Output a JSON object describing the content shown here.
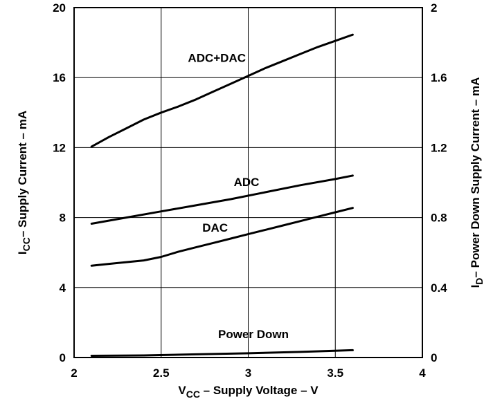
{
  "chart_data": {
    "type": "line",
    "xlabel": {
      "main": "V",
      "sub": "CC",
      "rest": " – Supply Voltage – V"
    },
    "ylabel": {
      "main": "I",
      "sub": "CC",
      "rest": "– Supply Current – mA"
    },
    "y2label": {
      "main": "I",
      "sub": "D",
      "rest": "– Power Down Supply Current – mA"
    },
    "xlim": [
      2,
      4
    ],
    "ylim": [
      0,
      20
    ],
    "y2lim": [
      0,
      2
    ],
    "grid": true,
    "x_ticks": [
      {
        "value": 2,
        "label": "2"
      },
      {
        "value": 2.5,
        "label": "2.5"
      },
      {
        "value": 3,
        "label": "3"
      },
      {
        "value": 3.5,
        "label": "3.5"
      },
      {
        "value": 4,
        "label": "4"
      }
    ],
    "y_ticks": [
      {
        "value": 0,
        "label": "0"
      },
      {
        "value": 4,
        "label": "4"
      },
      {
        "value": 8,
        "label": "8"
      },
      {
        "value": 12,
        "label": "12"
      },
      {
        "value": 16,
        "label": "16"
      },
      {
        "value": 20,
        "label": "20"
      }
    ],
    "y2_ticks": [
      {
        "value": 0,
        "label": "0"
      },
      {
        "value": 0.4,
        "label": "0.4"
      },
      {
        "value": 0.8,
        "label": "0.8"
      },
      {
        "value": 1.2,
        "label": "1.2"
      },
      {
        "value": 1.6,
        "label": "1.6"
      },
      {
        "value": 2,
        "label": "2"
      }
    ],
    "series": [
      {
        "name": "ADC+DAC",
        "axis": "left",
        "x": [
          2.1,
          2.2,
          2.3,
          2.4,
          2.5,
          2.6,
          2.7,
          2.8,
          2.9,
          3.0,
          3.1,
          3.2,
          3.3,
          3.4,
          3.5,
          3.6
        ],
        "y": [
          12.05,
          12.6,
          13.1,
          13.6,
          14.0,
          14.35,
          14.75,
          15.2,
          15.65,
          16.1,
          16.55,
          16.95,
          17.35,
          17.75,
          18.1,
          18.45
        ]
      },
      {
        "name": "ADC",
        "axis": "left",
        "x": [
          2.1,
          2.3,
          2.5,
          2.7,
          2.9,
          3.1,
          3.3,
          3.5,
          3.6
        ],
        "y": [
          7.65,
          8.0,
          8.35,
          8.7,
          9.05,
          9.45,
          9.85,
          10.2,
          10.4
        ]
      },
      {
        "name": "DAC",
        "axis": "left",
        "x": [
          2.1,
          2.2,
          2.3,
          2.4,
          2.5,
          2.6,
          2.7,
          2.8,
          2.9,
          3.0,
          3.1,
          3.2,
          3.3,
          3.4,
          3.5,
          3.6
        ],
        "y": [
          5.25,
          5.35,
          5.45,
          5.55,
          5.75,
          6.05,
          6.3,
          6.55,
          6.8,
          7.05,
          7.3,
          7.55,
          7.8,
          8.05,
          8.3,
          8.55
        ]
      },
      {
        "name": "Power Down",
        "axis": "right",
        "x": [
          2.1,
          2.4,
          2.7,
          3.0,
          3.3,
          3.6
        ],
        "y": [
          0.01,
          0.012,
          0.018,
          0.024,
          0.032,
          0.042
        ]
      }
    ],
    "label_placement": {
      "ADC+DAC": {
        "x": 2.82,
        "y": 16.9
      },
      "ADC": {
        "x": 2.99,
        "y": 9.8
      },
      "DAC": {
        "x": 2.81,
        "y": 7.2
      },
      "Power Down": {
        "x": 3.03,
        "y": 1.1
      }
    }
  }
}
